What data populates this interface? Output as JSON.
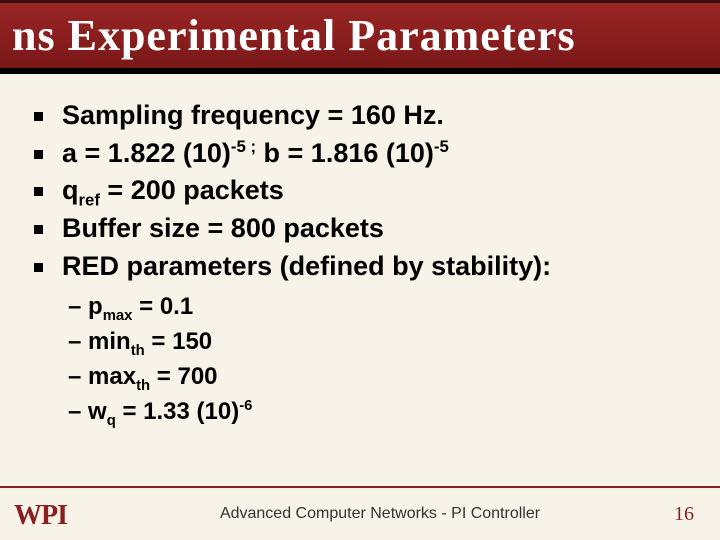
{
  "colors": {
    "header_bg": "#8a1f1f",
    "header_border_bottom": "#000000",
    "slide_bg": "#f7f3e8",
    "footer_rule": "#8a1f1f",
    "accent": "#8a1f1f",
    "text": "#000000"
  },
  "typography": {
    "title_font": "Comic Sans MS",
    "title_size_pt": 34,
    "body_font": "Arial",
    "body_size_pt": 20,
    "sub_size_pt": 18,
    "body_weight": "bold"
  },
  "title": "ns Experimental Parameters",
  "bullets": {
    "b0": "Sampling frequency = 160 Hz.",
    "b1": {
      "a_val": "1.822",
      "a_exp": "-5",
      "b_val": "1.816",
      "b_exp": "-5"
    },
    "b2": {
      "qref": "200 packets"
    },
    "b3": "Buffer size = 800 packets",
    "b4": "RED parameters (defined by stability):"
  },
  "sub": {
    "s0": {
      "pmax": "0.1"
    },
    "s1": {
      "min_th": "150"
    },
    "s2": {
      "max_th": "700"
    },
    "s3": {
      "wq_val": "1.33",
      "wq_exp": "-6"
    }
  },
  "footer": {
    "logo_text": "WPI",
    "caption": "Advanced Computer Networks -  PI Controller",
    "page": "16"
  }
}
